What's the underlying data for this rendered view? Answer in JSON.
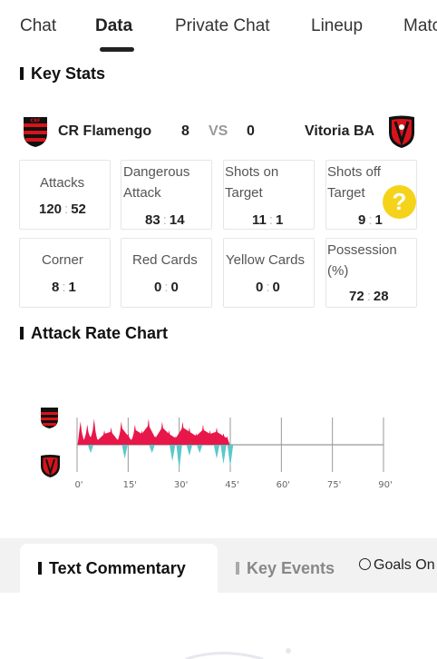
{
  "tabs": [
    "Chat",
    "Data",
    "Private Chat",
    "Lineup",
    "Matc"
  ],
  "key_stats_title": "Key Stats",
  "match": {
    "home_team": "CR Flamengo",
    "home_score": "8",
    "vs": "VS",
    "away_score": "0",
    "away_team": "Vitoria BA"
  },
  "stats": [
    {
      "label": "Attacks",
      "home": "120",
      "away": "52"
    },
    {
      "label": "Dangerous Attack",
      "home": "83",
      "away": "14"
    },
    {
      "label": "Shots on Target",
      "home": "11",
      "away": "1"
    },
    {
      "label": "Shots off Target",
      "home": "9",
      "away": "1"
    },
    {
      "label": "Corner",
      "home": "8",
      "away": "1"
    },
    {
      "label": "Red Cards",
      "home": "0",
      "away": "0"
    },
    {
      "label": "Yellow Cards",
      "home": "0",
      "away": "0"
    },
    {
      "label": "Possession(%)",
      "home": "72",
      "away": "28"
    }
  ],
  "help_icon": "?",
  "attack_chart_title": "Attack Rate Chart",
  "chart_data": {
    "type": "area",
    "title": "Attack Rate Chart",
    "x_ticks": [
      "0'",
      "15'",
      "30'",
      "45'",
      "60'",
      "75'",
      "90'"
    ],
    "xlim": [
      0,
      90
    ],
    "series": [
      {
        "color": "#e8174a",
        "values": [
          [
            1,
            0.8
          ],
          [
            2,
            0.2
          ],
          [
            3,
            0.7
          ],
          [
            4,
            0.3
          ],
          [
            5,
            0.9
          ],
          [
            6,
            0.2
          ],
          [
            8,
            0.5
          ],
          [
            10,
            0.6
          ],
          [
            12,
            0.2
          ],
          [
            13,
            0.8
          ],
          [
            15,
            0.4
          ],
          [
            16,
            0.2
          ],
          [
            17,
            0.7
          ],
          [
            19,
            0.5
          ],
          [
            21,
            0.9
          ],
          [
            23,
            0.3
          ],
          [
            25,
            0.8
          ],
          [
            27,
            0.5
          ],
          [
            29,
            0.3
          ],
          [
            31,
            0.8
          ],
          [
            33,
            0.6
          ],
          [
            35,
            0.4
          ],
          [
            37,
            0.7
          ],
          [
            39,
            0.5
          ],
          [
            41,
            0.6
          ],
          [
            43,
            0.4
          ],
          [
            44,
            0.3
          ]
        ]
      },
      {
        "color": "#5bc8c8",
        "values": [
          [
            4,
            0.3
          ],
          [
            14,
            0.5
          ],
          [
            22,
            0.3
          ],
          [
            28,
            0.6
          ],
          [
            30,
            0.9
          ],
          [
            33,
            0.4
          ],
          [
            36,
            0.3
          ],
          [
            41,
            0.5
          ],
          [
            43,
            0.7
          ],
          [
            45,
            0.8
          ]
        ]
      }
    ]
  },
  "colors": {
    "home": "#e8174a",
    "away": "#5bc8c8",
    "accent": "#f5d31a"
  },
  "bottom_tabs": {
    "commentary": "Text Commentary",
    "key_events": "Key Events",
    "goals": "Goals On"
  }
}
